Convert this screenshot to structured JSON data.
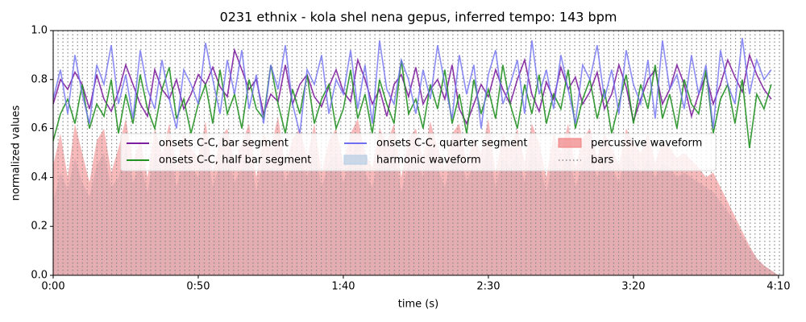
{
  "chart_data": {
    "type": "line",
    "title": "0231 ethnix - kola shel nena gepus, inferred tempo: 143 bpm",
    "xlabel": "time (s)",
    "ylabel": "normalized values",
    "xlim": [
      0,
      251.7
    ],
    "ylim": [
      0,
      1
    ],
    "xticks": [
      {
        "value": 0,
        "label": "0:00"
      },
      {
        "value": 50,
        "label": "0:50"
      },
      {
        "value": 100,
        "label": "1:40"
      },
      {
        "value": 150,
        "label": "2:30"
      },
      {
        "value": 200,
        "label": "3:20"
      },
      {
        "value": 250,
        "label": "4:10"
      }
    ],
    "yticks": [
      {
        "value": 0,
        "label": "0.0"
      },
      0.2,
      0.4,
      0.6,
      0.8,
      {
        "value": 1,
        "label": "1.0"
      }
    ],
    "legend": "center",
    "x": [
      0,
      2.5,
      5,
      7.5,
      10,
      12.5,
      15,
      17.5,
      20,
      22.5,
      25,
      27.5,
      30,
      32.5,
      35,
      37.5,
      40,
      42.5,
      45,
      47.5,
      50,
      52.5,
      55,
      57.5,
      60,
      62.5,
      65,
      67.5,
      70,
      72.5,
      75,
      77.5,
      80,
      82.5,
      85,
      87.5,
      90,
      92.5,
      95,
      97.5,
      100,
      102.5,
      105,
      107.5,
      110,
      112.5,
      115,
      117.5,
      120,
      122.5,
      125,
      127.5,
      130,
      132.5,
      135,
      137.5,
      140,
      142.5,
      145,
      147.5,
      150,
      152.5,
      155,
      157.5,
      160,
      162.5,
      165,
      167.5,
      170,
      172.5,
      175,
      177.5,
      180,
      182.5,
      185,
      187.5,
      190,
      192.5,
      195,
      197.5,
      200,
      202.5,
      205,
      207.5,
      210,
      212.5,
      215,
      217.5,
      220,
      222.5,
      225,
      227.5,
      230,
      232.5,
      235,
      237.5,
      240,
      242.5,
      245,
      247.5,
      250
    ],
    "series": [
      {
        "name": "onsets C-C, bar segment",
        "kind": "line",
        "color": "#7e1f9e",
        "values": [
          0.7,
          0.8,
          0.76,
          0.83,
          0.78,
          0.68,
          0.82,
          0.72,
          0.67,
          0.75,
          0.86,
          0.78,
          0.7,
          0.65,
          0.84,
          0.76,
          0.72,
          0.8,
          0.68,
          0.74,
          0.82,
          0.78,
          0.85,
          0.77,
          0.73,
          0.92,
          0.84,
          0.76,
          0.8,
          0.66,
          0.74,
          0.71,
          0.86,
          0.7,
          0.78,
          0.82,
          0.73,
          0.69,
          0.77,
          0.84,
          0.75,
          0.71,
          0.88,
          0.8,
          0.7,
          0.76,
          0.65,
          0.78,
          0.82,
          0.73,
          0.85,
          0.7,
          0.76,
          0.8,
          0.72,
          0.86,
          0.68,
          0.62,
          0.7,
          0.78,
          0.73,
          0.84,
          0.76,
          0.7,
          0.8,
          0.88,
          0.74,
          0.67,
          0.79,
          0.72,
          0.85,
          0.76,
          0.81,
          0.7,
          0.75,
          0.83,
          0.68,
          0.74,
          0.86,
          0.77,
          0.63,
          0.72,
          0.8,
          0.84,
          0.7,
          0.76,
          0.86,
          0.78,
          0.65,
          0.74,
          0.82,
          0.7,
          0.78,
          0.88,
          0.81,
          0.75,
          0.9,
          0.82,
          0.76,
          0.72,
          null
        ]
      },
      {
        "name": "onsets C-C, half bar segment",
        "kind": "line",
        "color": "#229122",
        "values": [
          0.55,
          0.66,
          0.72,
          0.62,
          0.78,
          0.6,
          0.7,
          0.65,
          0.8,
          0.58,
          0.74,
          0.62,
          0.82,
          0.68,
          0.6,
          0.76,
          0.85,
          0.64,
          0.72,
          0.58,
          0.7,
          0.78,
          0.62,
          0.84,
          0.66,
          0.74,
          0.6,
          0.8,
          0.68,
          0.64,
          0.86,
          0.7,
          0.58,
          0.76,
          0.66,
          0.82,
          0.62,
          0.72,
          0.78,
          0.6,
          0.68,
          0.84,
          0.64,
          0.74,
          0.58,
          0.8,
          0.7,
          0.62,
          0.88,
          0.66,
          0.72,
          0.6,
          0.78,
          0.68,
          0.84,
          0.62,
          0.74,
          0.58,
          0.8,
          0.66,
          0.76,
          0.64,
          0.86,
          0.7,
          0.6,
          0.78,
          0.66,
          0.82,
          0.62,
          0.74,
          0.68,
          0.84,
          0.6,
          0.72,
          0.8,
          0.64,
          0.76,
          0.58,
          0.7,
          0.82,
          0.62,
          0.78,
          0.68,
          0.86,
          0.64,
          0.74,
          0.6,
          0.8,
          0.7,
          0.66,
          0.84,
          0.58,
          0.72,
          0.78,
          0.62,
          0.8,
          0.52,
          0.74,
          0.68,
          0.78,
          null
        ]
      },
      {
        "name": "onsets C-C, quarter segment",
        "kind": "line",
        "color": "#6f6ff2",
        "values": [
          0.72,
          0.84,
          0.66,
          0.9,
          0.74,
          0.62,
          0.86,
          0.78,
          0.94,
          0.7,
          0.82,
          0.64,
          0.92,
          0.76,
          0.68,
          0.88,
          0.72,
          0.6,
          0.84,
          0.78,
          0.7,
          0.95,
          0.8,
          0.66,
          0.88,
          0.74,
          0.92,
          0.68,
          0.82,
          0.62,
          0.86,
          0.76,
          0.94,
          0.7,
          0.58,
          0.84,
          0.78,
          0.9,
          0.66,
          0.8,
          0.74,
          0.92,
          0.68,
          0.86,
          0.62,
          0.96,
          0.76,
          0.7,
          0.88,
          0.8,
          0.66,
          0.84,
          0.72,
          0.94,
          0.78,
          0.64,
          0.9,
          0.74,
          0.86,
          0.6,
          0.82,
          0.92,
          0.7,
          0.78,
          0.88,
          0.66,
          0.96,
          0.74,
          0.84,
          0.68,
          0.9,
          0.76,
          0.62,
          0.86,
          0.8,
          0.94,
          0.72,
          0.84,
          0.66,
          0.92,
          0.78,
          0.7,
          0.88,
          0.64,
          0.96,
          0.76,
          0.82,
          0.68,
          0.9,
          0.74,
          0.86,
          0.6,
          0.92,
          0.78,
          0.7,
          0.97,
          0.74,
          0.88,
          0.8,
          0.84,
          null
        ]
      },
      {
        "name": "harmonic waveform",
        "kind": "area",
        "color": "#b5cde4",
        "values": [
          0.3,
          0.42,
          0.35,
          0.48,
          0.38,
          0.32,
          0.45,
          0.5,
          0.36,
          0.4,
          0.52,
          0.38,
          0.46,
          0.34,
          0.5,
          0.42,
          0.54,
          0.36,
          0.48,
          0.44,
          0.4,
          0.55,
          0.36,
          0.46,
          0.5,
          0.38,
          0.44,
          0.52,
          0.34,
          0.48,
          0.44,
          0.56,
          0.38,
          0.46,
          0.5,
          0.4,
          0.52,
          0.36,
          0.46,
          0.5,
          0.38,
          0.48,
          0.54,
          0.42,
          0.36,
          0.5,
          0.44,
          0.52,
          0.34,
          0.46,
          0.5,
          0.4,
          0.54,
          0.44,
          0.36,
          0.48,
          0.52,
          0.38,
          0.46,
          0.42,
          0.54,
          0.36,
          0.48,
          0.44,
          0.5,
          0.38,
          0.52,
          0.46,
          0.34,
          0.48,
          0.42,
          0.52,
          0.36,
          0.46,
          0.5,
          0.4,
          0.48,
          0.44,
          0.38,
          0.5,
          0.46,
          0.42,
          0.48,
          0.4,
          0.46,
          0.44,
          0.4,
          0.42,
          0.4,
          0.38,
          0.36,
          0.34,
          0.3,
          0.26,
          0.22,
          0.16,
          0.11,
          0.07,
          0.04,
          0.02,
          0
        ]
      },
      {
        "name": "percussive waveform",
        "kind": "area",
        "color": "#f08080",
        "values": [
          0.45,
          0.58,
          0.4,
          0.62,
          0.5,
          0.38,
          0.55,
          0.6,
          0.42,
          0.52,
          0.64,
          0.46,
          0.56,
          0.4,
          0.6,
          0.5,
          0.62,
          0.44,
          0.58,
          0.52,
          0.48,
          0.63,
          0.42,
          0.56,
          0.6,
          0.46,
          0.54,
          0.62,
          0.4,
          0.58,
          0.52,
          0.65,
          0.44,
          0.56,
          0.6,
          0.48,
          0.62,
          0.42,
          0.55,
          0.6,
          0.46,
          0.58,
          0.64,
          0.5,
          0.44,
          0.6,
          0.54,
          0.62,
          0.4,
          0.56,
          0.6,
          0.48,
          0.63,
          0.52,
          0.44,
          0.58,
          0.62,
          0.46,
          0.56,
          0.5,
          0.64,
          0.42,
          0.58,
          0.52,
          0.6,
          0.46,
          0.62,
          0.54,
          0.4,
          0.58,
          0.5,
          0.62,
          0.44,
          0.56,
          0.6,
          0.48,
          0.58,
          0.52,
          0.45,
          0.6,
          0.54,
          0.5,
          0.58,
          0.46,
          0.55,
          0.52,
          0.48,
          0.5,
          0.47,
          0.44,
          0.4,
          0.42,
          0.36,
          0.3,
          0.24,
          0.18,
          0.12,
          0.07,
          0.04,
          0.02,
          0
        ]
      }
    ],
    "bars": {
      "name": "bars",
      "color": "#888888",
      "x": [
        0,
        1.68,
        3.36,
        5.04,
        6.72,
        8.4,
        10.08,
        11.76,
        13.44,
        15.12,
        16.8,
        18.48,
        20.16,
        21.84,
        23.52,
        25.2,
        26.88,
        28.56,
        30.24,
        31.92,
        33.6,
        35.28,
        36.96,
        38.64,
        40.32,
        42,
        43.68,
        45.36,
        47.04,
        48.72,
        50.4,
        52.08,
        53.76,
        55.44,
        57.12,
        58.8,
        60.48,
        62.16,
        63.84,
        65.52,
        67.2,
        68.88,
        70.56,
        72.24,
        73.92,
        75.6,
        77.28,
        78.96,
        80.64,
        82.32,
        84,
        85.68,
        87.36,
        89.04,
        90.72,
        92.4,
        94.08,
        95.76,
        97.44,
        99.12,
        100.8,
        102.48,
        104.16,
        105.84,
        107.52,
        109.2,
        110.88,
        112.56,
        114.24,
        115.92,
        117.6,
        119.28,
        120.96,
        122.64,
        124.32,
        126,
        127.68,
        129.36,
        131.04,
        132.72,
        134.4,
        136.08,
        137.76,
        139.44,
        141.12,
        142.8,
        144.48,
        146.16,
        147.84,
        149.52,
        151.2,
        152.88,
        154.56,
        156.24,
        157.92,
        159.6,
        161.28,
        162.96,
        164.64,
        166.32,
        168,
        169.68,
        171.36,
        173.04,
        174.72,
        176.4,
        178.08,
        179.76,
        181.44,
        183.12,
        184.8,
        186.48,
        188.16,
        189.84,
        191.52,
        193.2,
        194.88,
        196.56,
        198.24,
        199.92,
        201.6,
        203.28,
        204.96,
        206.64,
        208.32,
        210,
        211.68,
        213.36,
        215.04,
        216.72,
        218.4,
        220.08,
        221.76,
        223.44,
        225.12,
        226.8,
        228.48,
        230.16,
        231.84,
        233.52,
        235.2,
        236.88,
        238.56,
        240.24,
        241.92,
        243.6,
        245.28,
        246.96,
        248.64,
        250.32
      ]
    }
  }
}
